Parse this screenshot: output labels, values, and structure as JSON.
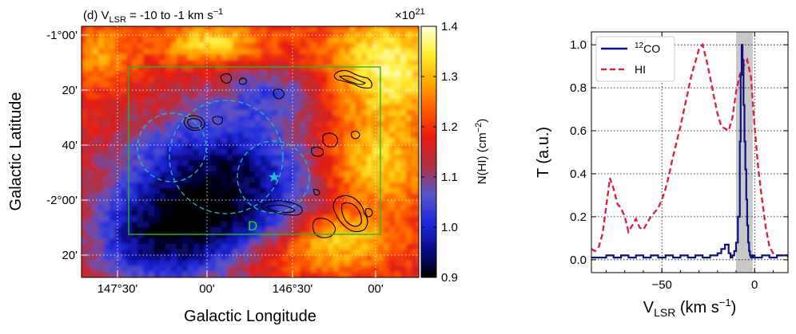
{
  "chart_data": [
    {
      "type": "heatmap",
      "panel_label": "(d)",
      "title_prefix": "(d) V",
      "title_sub": "LSR",
      "title_suffix": " = -10 to -1 km s",
      "title_sup": "−1",
      "xlabel": "Galactic Longitude",
      "ylabel": "Galactic Latitude",
      "x_ticks": [
        "147°30'",
        "00'",
        "146°30'",
        "00'"
      ],
      "y_ticks": [
        "-1°00'",
        "20'",
        "40'",
        "-2°00'",
        "20'"
      ],
      "colorbar": {
        "label_prefix": "N(HI) (cm",
        "label_sup": "−2",
        "label_suffix": ")",
        "multiplier": "×10",
        "multiplier_exp": "21",
        "ticks": [
          "1.4",
          "1.3",
          "1.2",
          "1.1",
          "1.0",
          "0.9"
        ],
        "range": [
          0.9,
          1.4
        ],
        "colormap": [
          "#000000",
          "#0a0a8c",
          "#1e2ae0",
          "#5a55c8",
          "#b03040",
          "#e81a10",
          "#ff5a00",
          "#ffaa00",
          "#ffee30",
          "#ffffd8"
        ]
      },
      "region_label": "D",
      "region_box_color": "#22bb22",
      "circle_color": "#1fbcd0",
      "marker_color": "#1fbcd0",
      "contour_color": "#000000"
    },
    {
      "type": "line",
      "xlabel_prefix": "V",
      "xlabel_sub": "LSR",
      "xlabel_suffix": " (km s",
      "xlabel_sup": "−1",
      "xlabel_end": ")",
      "ylabel": "T (a.u.)",
      "xlim": [
        -88,
        18
      ],
      "ylim": [
        -0.06,
        1.06
      ],
      "x_ticks": [
        {
          "value": -50,
          "label": "−50"
        },
        {
          "value": 0,
          "label": "0"
        }
      ],
      "y_ticks": [
        {
          "value": 0.0,
          "label": "0.0"
        },
        {
          "value": 0.2,
          "label": "0.2"
        },
        {
          "value": 0.4,
          "label": "0.4"
        },
        {
          "value": 0.6,
          "label": "0.6"
        },
        {
          "value": 0.8,
          "label": "0.8"
        },
        {
          "value": 1.0,
          "label": "1.0"
        }
      ],
      "shaded_range": [
        -10,
        -1
      ],
      "shade_color": "#c8c8c8",
      "series": [
        {
          "name": "HI",
          "legend_label": "HI",
          "color": "#dd2244",
          "style": "dashed",
          "x": [
            -88,
            -86,
            -84,
            -82,
            -80,
            -78,
            -76,
            -74,
            -72,
            -70,
            -68,
            -66,
            -64,
            -62,
            -60,
            -58,
            -56,
            -54,
            -52,
            -50,
            -48,
            -46,
            -44,
            -42,
            -40,
            -38,
            -36,
            -34,
            -32,
            -30,
            -28,
            -26,
            -24,
            -22,
            -20,
            -18,
            -16,
            -14,
            -12,
            -10,
            -8,
            -6,
            -4,
            -2,
            0,
            2,
            4,
            6,
            8,
            10,
            12,
            14,
            16,
            18
          ],
          "values": [
            0.05,
            0.04,
            0.06,
            0.12,
            0.25,
            0.38,
            0.33,
            0.26,
            0.24,
            0.2,
            0.13,
            0.16,
            0.19,
            0.15,
            0.14,
            0.17,
            0.2,
            0.22,
            0.24,
            0.28,
            0.33,
            0.4,
            0.48,
            0.55,
            0.62,
            0.7,
            0.78,
            0.86,
            0.92,
            0.98,
            1.0,
            0.93,
            0.85,
            0.76,
            0.68,
            0.62,
            0.61,
            0.6,
            0.66,
            0.78,
            0.86,
            0.9,
            0.93,
            0.85,
            0.62,
            0.42,
            0.28,
            0.15,
            0.06,
            0.03,
            0.02,
            0.02,
            0.02,
            0.02
          ]
        },
        {
          "name": "12CO",
          "legend_label_sup": "12",
          "legend_label": "CO",
          "color": "#0a1080",
          "style": "steps",
          "x": [
            -88,
            -80,
            -76,
            -72,
            -68,
            -64,
            -60,
            -56,
            -52,
            -48,
            -44,
            -40,
            -36,
            -32,
            -28,
            -24,
            -20,
            -18,
            -16,
            -14,
            -13,
            -12,
            -11,
            -10,
            -9,
            -8,
            -7.5,
            -7,
            -6.5,
            -6,
            -5.5,
            -5,
            -4.5,
            -4,
            -3.5,
            -3,
            -2.5,
            -2,
            -1,
            0,
            4,
            8,
            12,
            18
          ],
          "values": [
            0.01,
            0.02,
            0.01,
            0.02,
            0.01,
            0.02,
            0.01,
            0.02,
            0.01,
            0.02,
            0.01,
            0.02,
            0.01,
            0.02,
            0.01,
            0.02,
            0.03,
            0.05,
            0.07,
            0.03,
            0.01,
            0.02,
            0.04,
            0.08,
            0.2,
            0.55,
            0.86,
            1.0,
            0.93,
            0.72,
            0.55,
            0.42,
            0.28,
            0.16,
            0.08,
            0.04,
            0.02,
            0.01,
            0.02,
            0.01,
            0.02,
            0.01,
            0.02,
            0.01
          ]
        }
      ]
    }
  ]
}
